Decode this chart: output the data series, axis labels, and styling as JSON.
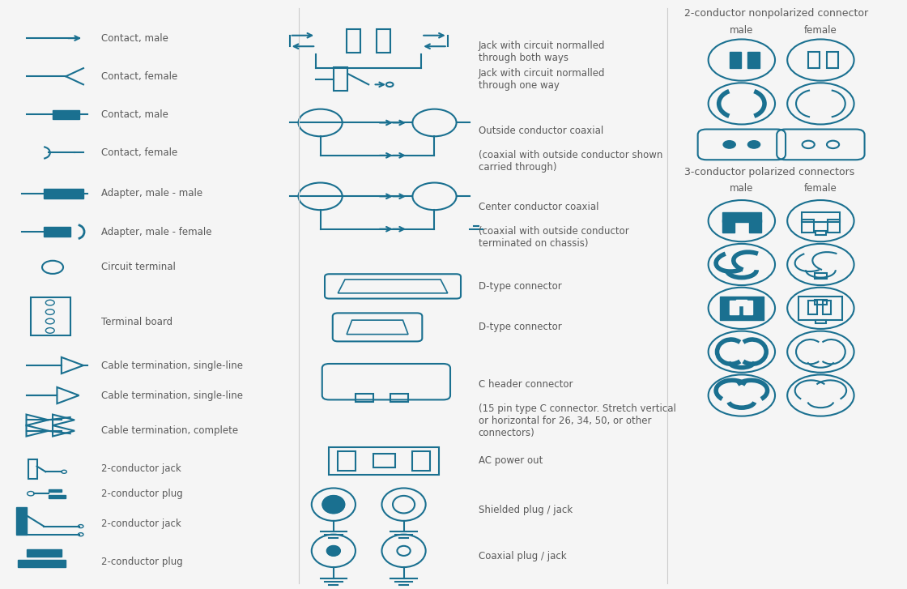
{
  "bg_color": "#f5f5f5",
  "teal": "#1a7090",
  "dark_teal": "#0d5a70",
  "text_color": "#5a5a5a",
  "title_color": "#5a5a5a",
  "line_width": 1.5,
  "left_labels": [
    [
      "Contact, male",
      0.93
    ],
    [
      "Contact, female",
      0.86
    ],
    [
      "Contact, male",
      0.79
    ],
    [
      "Contact, female",
      0.72
    ],
    [
      "Adapter, male - male",
      0.645
    ],
    [
      "Adapter, male - female",
      0.575
    ],
    [
      "Circuit terminal",
      0.51
    ],
    [
      "Terminal board",
      0.41
    ],
    [
      "Cable termination, single-line",
      0.33
    ],
    [
      "Cable termination, single-line",
      0.275
    ],
    [
      "Cable termination, complete",
      0.21
    ],
    [
      "2-conductor jack",
      0.14
    ],
    [
      "2-conductor plug",
      0.095
    ],
    [
      "2-conductor jack",
      0.04
    ],
    [
      "2-conductor plug",
      -0.025
    ]
  ],
  "mid_labels": [
    [
      "Jack with circuit normalled\nthrough both ways",
      0.93
    ],
    [
      "Jack with circuit normalled\nthrough one way",
      0.845
    ],
    [
      "Outside conductor coaxial\n\n(coaxial with outside conductor shown\ncarried through)",
      0.73
    ],
    [
      "Center conductor coaxial\n\n(coaxial with outside conductor\nterminated on chassis)",
      0.575
    ],
    [
      "D-type connector",
      0.455
    ],
    [
      "D-type connector",
      0.375
    ],
    [
      "C header connector\n\n(15 pin type C connector. Stretch vertical\nor horizontal for 26, 34, 50, or other\nconnectors)",
      0.27
    ],
    [
      "AC power out",
      0.115
    ],
    [
      "Shielded plug / jack",
      0.04
    ],
    [
      "Coaxial plug / jack",
      -0.035
    ]
  ],
  "right_section1_title": "2-conductor nonpolarized connector",
  "right_section2_title": "3-conductor polarized connectors",
  "male_label": "male",
  "female_label": "female"
}
